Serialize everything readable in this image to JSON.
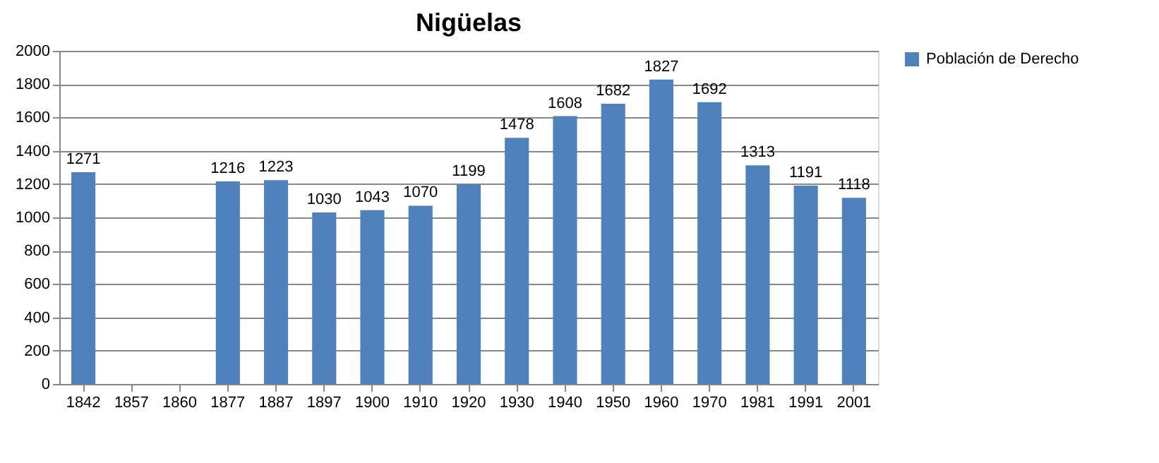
{
  "chart_data": {
    "type": "bar",
    "title": "Nigüelas",
    "categories": [
      "1842",
      "1857",
      "1860",
      "1877",
      "1887",
      "1897",
      "1900",
      "1910",
      "1920",
      "1930",
      "1940",
      "1950",
      "1960",
      "1970",
      "1981",
      "1991",
      "2001"
    ],
    "series": [
      {
        "name": "Población de Derecho",
        "color": "#4f81bd",
        "values": [
          1271,
          null,
          null,
          1216,
          1223,
          1030,
          1043,
          1070,
          1199,
          1478,
          1608,
          1682,
          1827,
          1692,
          1313,
          1191,
          1118
        ]
      }
    ],
    "ylim": [
      0,
      2000
    ],
    "yticks": [
      0,
      200,
      400,
      600,
      800,
      1000,
      1200,
      1400,
      1600,
      1800,
      2000
    ],
    "grid": "y",
    "legend": "right",
    "data_labels": true
  }
}
